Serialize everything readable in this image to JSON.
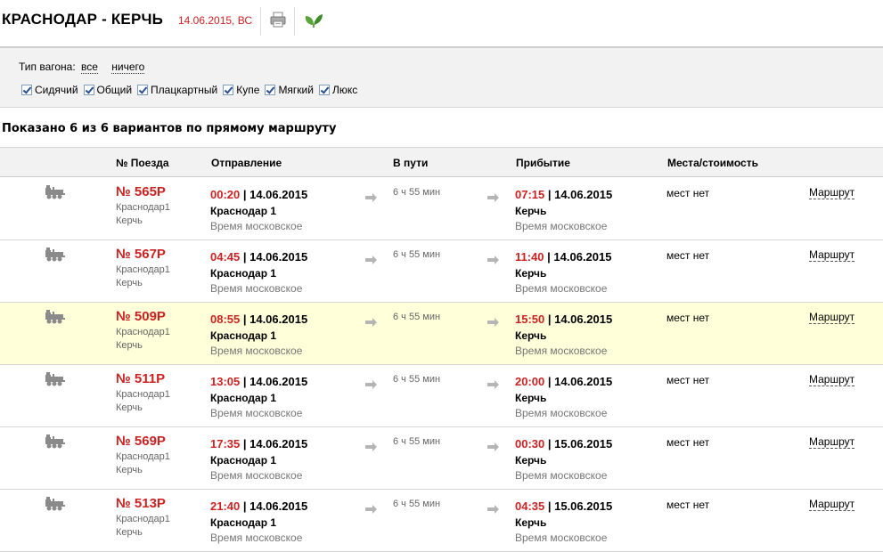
{
  "header": {
    "route_title": "КРАСНОДАР - КЕРЧЬ",
    "date": "14.06.2015, ВС",
    "print_icon": "printer-icon",
    "eco_icon": "leaf-icon"
  },
  "filter": {
    "label": "Тип вагона:",
    "all_link": "все",
    "none_link": "ничего",
    "car_types": [
      {
        "label": "Сидячий",
        "checked": true
      },
      {
        "label": "Общий",
        "checked": true
      },
      {
        "label": "Плацкартный",
        "checked": true
      },
      {
        "label": "Купе",
        "checked": true
      },
      {
        "label": "Мягкий",
        "checked": true
      },
      {
        "label": "Люкс",
        "checked": true
      }
    ]
  },
  "summary": "Показано 6 из 6 вариантов по прямому маршруту",
  "table": {
    "headers": {
      "train": "№ Поезда",
      "departure": "Отправление",
      "duration": "В пути",
      "arrival": "Прибытие",
      "places": "Места/стоимость"
    },
    "rows": [
      {
        "number": "№ 565Р",
        "from": "Краснодар1",
        "to": "Керчь",
        "dep_time": "00:20",
        "dep_date": " | 14.06.2015",
        "dep_station": "Краснодар 1",
        "dep_tz": "Время московское",
        "duration": "6 ч 55 мин",
        "arr_time": "07:15",
        "arr_date": " | 14.06.2015",
        "arr_station": "Керчь",
        "arr_tz": "Время московское",
        "places": "мест нет",
        "route": "Маршрут",
        "highlighted": false
      },
      {
        "number": "№ 567Р",
        "from": "Краснодар1",
        "to": "Керчь",
        "dep_time": "04:45",
        "dep_date": " | 14.06.2015",
        "dep_station": "Краснодар 1",
        "dep_tz": "Время московское",
        "duration": "6 ч 55 мин",
        "arr_time": "11:40",
        "arr_date": " | 14.06.2015",
        "arr_station": "Керчь",
        "arr_tz": "Время московское",
        "places": "мест нет",
        "route": "Маршрут",
        "highlighted": false
      },
      {
        "number": "№ 509Р",
        "from": "Краснодар1",
        "to": "Керчь",
        "dep_time": "08:55",
        "dep_date": " | 14.06.2015",
        "dep_station": "Краснодар 1",
        "dep_tz": "Время московское",
        "duration": "6 ч 55 мин",
        "arr_time": "15:50",
        "arr_date": " | 14.06.2015",
        "arr_station": "Керчь",
        "arr_tz": "Время московское",
        "places": "мест нет",
        "route": "Маршрут",
        "highlighted": true
      },
      {
        "number": "№ 511Р",
        "from": "Краснодар1",
        "to": "Керчь",
        "dep_time": "13:05",
        "dep_date": " | 14.06.2015",
        "dep_station": "Краснодар 1",
        "dep_tz": "Время московское",
        "duration": "6 ч 55 мин",
        "arr_time": "20:00",
        "arr_date": " | 14.06.2015",
        "arr_station": "Керчь",
        "arr_tz": "Время московское",
        "places": "мест нет",
        "route": "Маршрут",
        "highlighted": false
      },
      {
        "number": "№ 569Р",
        "from": "Краснодар1",
        "to": "Керчь",
        "dep_time": "17:35",
        "dep_date": " | 14.06.2015",
        "dep_station": "Краснодар 1",
        "dep_tz": "Время московское",
        "duration": "6 ч 55 мин",
        "arr_time": "00:30",
        "arr_date": " | 15.06.2015",
        "arr_station": "Керчь",
        "arr_tz": "Время московское",
        "places": "мест нет",
        "route": "Маршрут",
        "highlighted": false
      },
      {
        "number": "№ 513Р",
        "from": "Краснодар1",
        "to": "Керчь",
        "dep_time": "21:40",
        "dep_date": " | 14.06.2015",
        "dep_station": "Краснодар 1",
        "dep_tz": "Время московское",
        "duration": "6 ч 55 мин",
        "arr_time": "04:35",
        "arr_date": " | 15.06.2015",
        "arr_station": "Керчь",
        "arr_tz": "Время московское",
        "places": "мест нет",
        "route": "Маршрут",
        "highlighted": false
      }
    ]
  },
  "colors": {
    "accent_red": "#cc2222",
    "highlight_row": "#ffffd9",
    "panel_gray": "#f2f2f2"
  }
}
